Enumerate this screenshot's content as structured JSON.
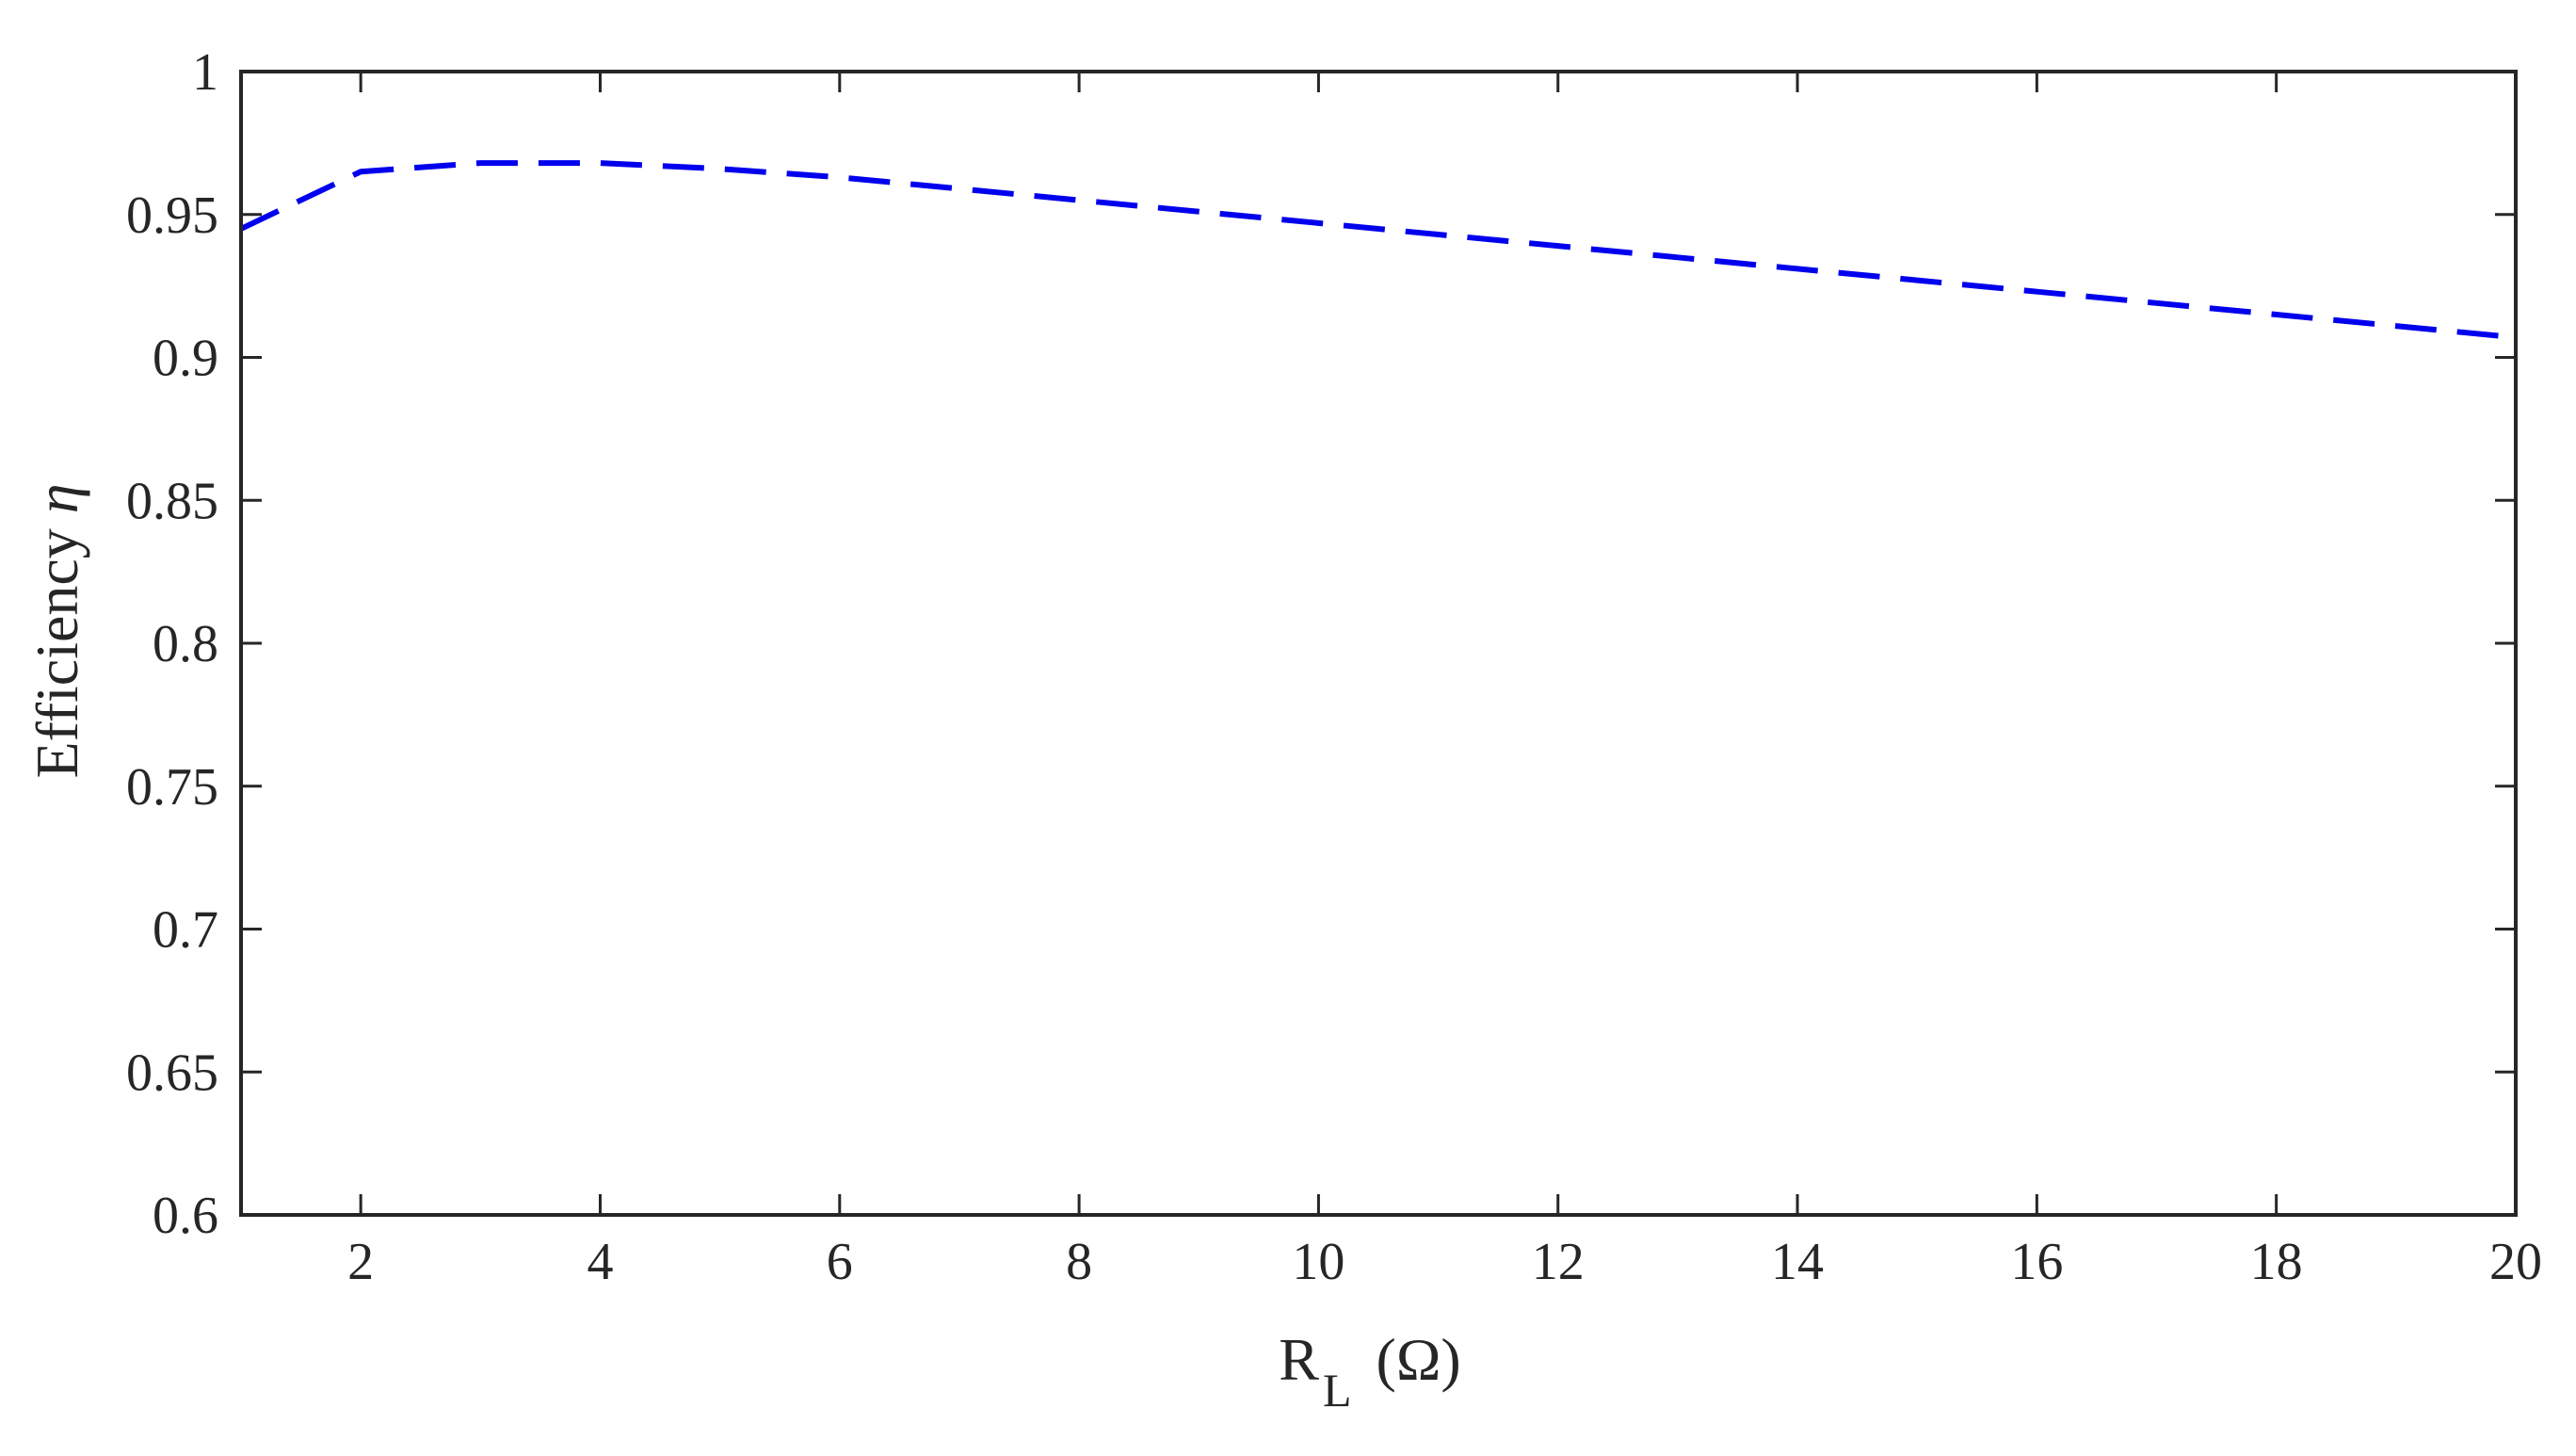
{
  "chart_data": {
    "type": "line",
    "title": "",
    "xlabel": {
      "main": "R",
      "subscript": "L",
      "unit": "(Ω)"
    },
    "ylabel": {
      "main": "Efficiency",
      "symbol": "η"
    },
    "xlim": [
      1,
      20
    ],
    "ylim": [
      0.6,
      1
    ],
    "xticks": [
      2,
      4,
      6,
      8,
      10,
      12,
      14,
      16,
      18,
      20
    ],
    "yticks": [
      0.6,
      0.65,
      0.7,
      0.75,
      0.8,
      0.85,
      0.9,
      0.95,
      1
    ],
    "ytick_labels": [
      "0.6",
      "0.65",
      "0.7",
      "0.75",
      "0.8",
      "0.85",
      "0.9",
      "0.95",
      "1"
    ],
    "grid": false,
    "box": true,
    "series": [
      {
        "color": "#0000ee",
        "line_style": "dashed",
        "x": [
          1,
          2,
          3,
          4,
          5,
          6,
          7,
          8,
          9,
          10,
          11,
          12,
          13,
          14,
          15,
          16,
          17,
          18,
          19,
          20
        ],
        "y": [
          0.945,
          0.965,
          0.968,
          0.968,
          0.966,
          0.963,
          0.959,
          0.955,
          0.951,
          0.947,
          0.943,
          0.939,
          0.935,
          0.931,
          0.927,
          0.923,
          0.919,
          0.915,
          0.911,
          0.907
        ]
      }
    ]
  }
}
